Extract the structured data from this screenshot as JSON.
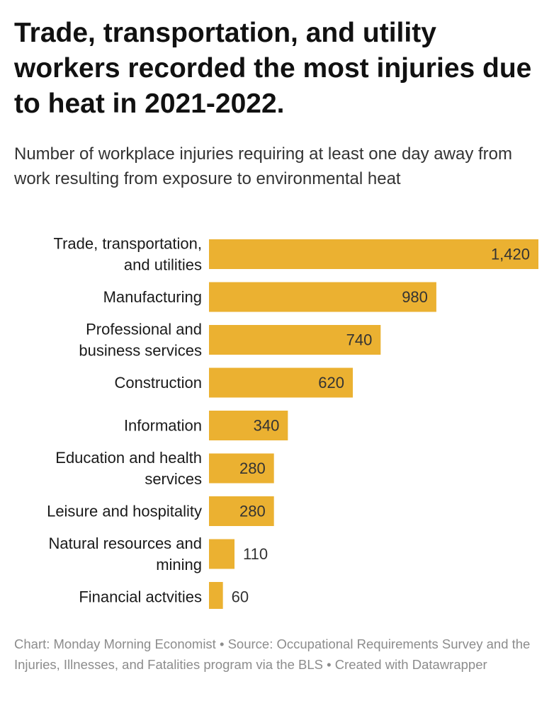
{
  "header": {
    "title": "Trade, transportation, and utility workers recorded the most injuries due to heat in 2021-2022.",
    "subtitle": "Number of workplace injuries requiring at least one day away from work resulting from exposure to environmental heat"
  },
  "footer": {
    "credit": "Chart: Monday Morning Economist • Source: Occupational Requirements Survey and the Injuries, Illnesses, and Fatalities program via the BLS • Created with Datawrapper"
  },
  "colors": {
    "bar": "#EBB131",
    "label": "#1a1a1a",
    "value": "#333333"
  },
  "chart_data": {
    "type": "bar",
    "orientation": "horizontal",
    "title": "Trade, transportation, and utility workers recorded the most injuries due to heat in 2021-2022.",
    "subtitle": "Number of workplace injuries requiring at least one day away from work resulting from exposure to environmental heat",
    "categories": [
      [
        "Trade, transportation,",
        "and utilities"
      ],
      [
        "Manufacturing"
      ],
      [
        "Professional and",
        "business services"
      ],
      [
        "Construction"
      ],
      [
        "Information"
      ],
      [
        "Education and health",
        "services"
      ],
      [
        "Leisure and hospitality"
      ],
      [
        "Natural resources and",
        "mining"
      ],
      [
        "Financial actvities"
      ]
    ],
    "values": [
      1420,
      980,
      740,
      620,
      340,
      280,
      280,
      110,
      60
    ],
    "value_labels": [
      "1,420",
      "980",
      "740",
      "620",
      "340",
      "280",
      "280",
      "110",
      "60"
    ],
    "xlim": [
      0,
      1420
    ],
    "grid": false,
    "legend": "none"
  }
}
